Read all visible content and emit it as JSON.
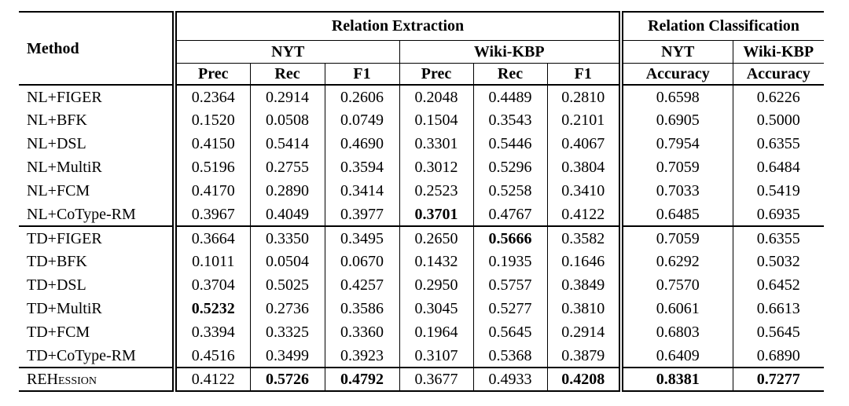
{
  "colors": {
    "background": "#ffffff",
    "text": "#000000",
    "rule": "#000000"
  },
  "table": {
    "corner_header": "Method",
    "group_headers": [
      {
        "label": "Relation Extraction"
      },
      {
        "label": "Relation Classification"
      }
    ],
    "dataset_headers": [
      {
        "label": "NYT"
      },
      {
        "label": "Wiki-KBP"
      },
      {
        "label": "NYT"
      },
      {
        "label": "Wiki-KBP"
      }
    ],
    "metric_headers": [
      "Prec",
      "Rec",
      "F1",
      "Prec",
      "Rec",
      "F1",
      "Accuracy",
      "Accuracy"
    ],
    "sections": [
      {
        "rows": [
          {
            "method": "NL+FIGER",
            "small_caps": false,
            "values": [
              "0.2364",
              "0.2914",
              "0.2606",
              "0.2048",
              "0.4489",
              "0.2810",
              "0.6598",
              "0.6226"
            ],
            "bold_cols": []
          },
          {
            "method": "NL+BFK",
            "small_caps": false,
            "values": [
              "0.1520",
              "0.0508",
              "0.0749",
              "0.1504",
              "0.3543",
              "0.2101",
              "0.6905",
              "0.5000"
            ],
            "bold_cols": []
          },
          {
            "method": "NL+DSL",
            "small_caps": false,
            "values": [
              "0.4150",
              "0.5414",
              "0.4690",
              "0.3301",
              "0.5446",
              "0.4067",
              "0.7954",
              "0.6355"
            ],
            "bold_cols": []
          },
          {
            "method": "NL+MultiR",
            "small_caps": false,
            "values": [
              "0.5196",
              "0.2755",
              "0.3594",
              "0.3012",
              "0.5296",
              "0.3804",
              "0.7059",
              "0.6484"
            ],
            "bold_cols": []
          },
          {
            "method": "NL+FCM",
            "small_caps": false,
            "values": [
              "0.4170",
              "0.2890",
              "0.3414",
              "0.2523",
              "0.5258",
              "0.3410",
              "0.7033",
              "0.5419"
            ],
            "bold_cols": []
          },
          {
            "method": "NL+CoType-RM",
            "small_caps": false,
            "values": [
              "0.3967",
              "0.4049",
              "0.3977",
              "0.3701",
              "0.4767",
              "0.4122",
              "0.6485",
              "0.6935"
            ],
            "bold_cols": [
              3
            ]
          }
        ]
      },
      {
        "rows": [
          {
            "method": "TD+FIGER",
            "small_caps": false,
            "values": [
              "0.3664",
              "0.3350",
              "0.3495",
              "0.2650",
              "0.5666",
              "0.3582",
              "0.7059",
              "0.6355"
            ],
            "bold_cols": [
              4
            ]
          },
          {
            "method": "TD+BFK",
            "small_caps": false,
            "values": [
              "0.1011",
              "0.0504",
              "0.0670",
              "0.1432",
              "0.1935",
              "0.1646",
              "0.6292",
              "0.5032"
            ],
            "bold_cols": []
          },
          {
            "method": "TD+DSL",
            "small_caps": false,
            "values": [
              "0.3704",
              "0.5025",
              "0.4257",
              "0.2950",
              "0.5757",
              "0.3849",
              "0.7570",
              "0.6452"
            ],
            "bold_cols": []
          },
          {
            "method": "TD+MultiR",
            "small_caps": false,
            "values": [
              "0.5232",
              "0.2736",
              "0.3586",
              "0.3045",
              "0.5277",
              "0.3810",
              "0.6061",
              "0.6613"
            ],
            "bold_cols": [
              0
            ]
          },
          {
            "method": "TD+FCM",
            "small_caps": false,
            "values": [
              "0.3394",
              "0.3325",
              "0.3360",
              "0.1964",
              "0.5645",
              "0.2914",
              "0.6803",
              "0.5645"
            ],
            "bold_cols": []
          },
          {
            "method": "TD+CoType-RM",
            "small_caps": false,
            "values": [
              "0.4516",
              "0.3499",
              "0.3923",
              "0.3107",
              "0.5368",
              "0.3879",
              "0.6409",
              "0.6890"
            ],
            "bold_cols": []
          }
        ]
      },
      {
        "rows": [
          {
            "method": "REHession",
            "small_caps": true,
            "values": [
              "0.4122",
              "0.5726",
              "0.4792",
              "0.3677",
              "0.4933",
              "0.4208",
              "0.8381",
              "0.7277"
            ],
            "bold_cols": [
              1,
              2,
              5,
              6,
              7
            ]
          }
        ]
      }
    ]
  }
}
